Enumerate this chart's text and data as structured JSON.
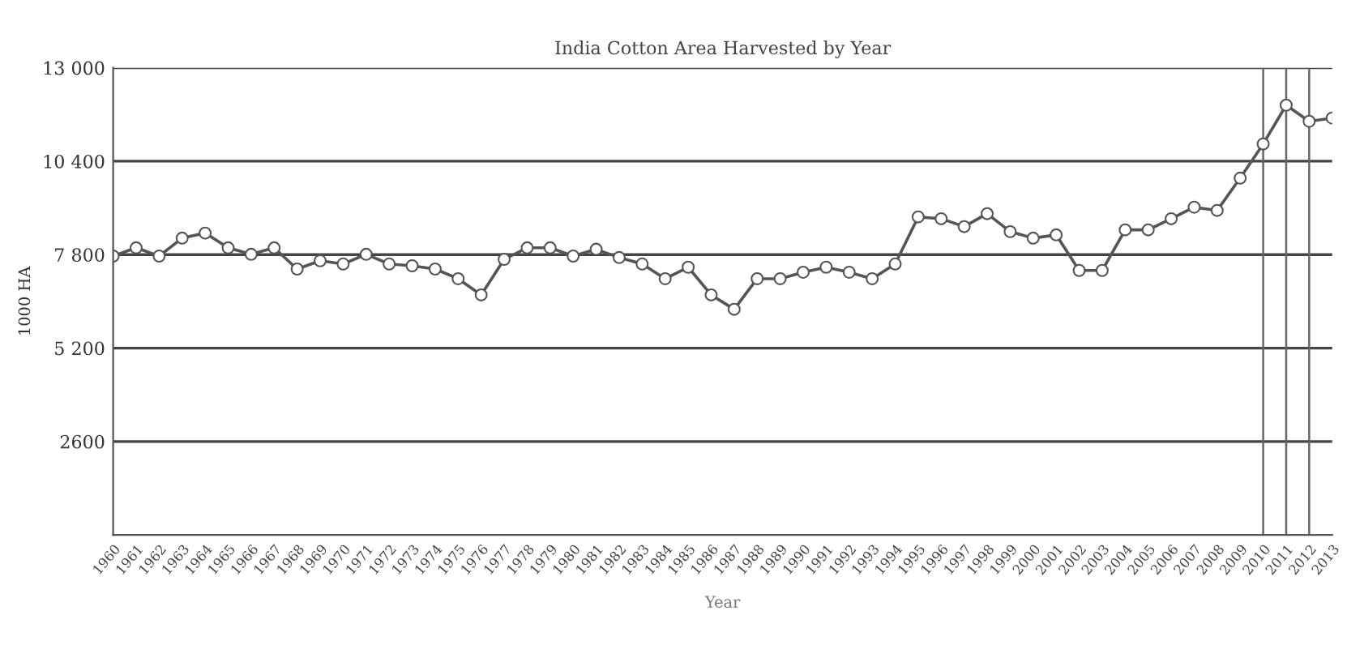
{
  "chart_data": {
    "type": "line",
    "title": "India Cotton Area Harvested by Year",
    "xlabel": "Year",
    "ylabel": "1000 HA",
    "x": [
      1960,
      1961,
      1962,
      1963,
      1964,
      1965,
      1966,
      1967,
      1968,
      1969,
      1970,
      1971,
      1972,
      1973,
      1974,
      1975,
      1976,
      1977,
      1978,
      1979,
      1980,
      1981,
      1982,
      1983,
      1984,
      1985,
      1986,
      1987,
      1988,
      1989,
      1990,
      1991,
      1992,
      1993,
      1994,
      1995,
      1996,
      1997,
      1998,
      1999,
      2000,
      2001,
      2002,
      2003,
      2004,
      2005,
      2006,
      2007,
      2008,
      2009,
      2010,
      2011,
      2012,
      2013
    ],
    "series": [
      {
        "color": "#555555",
        "values": [
          7760,
          7990,
          7760,
          8260,
          8400,
          7990,
          7810,
          7990,
          7400,
          7630,
          7540,
          7810,
          7540,
          7490,
          7400,
          7130,
          6680,
          7670,
          7990,
          7990,
          7760,
          7950,
          7720,
          7540,
          7130,
          7450,
          6680,
          6280,
          7130,
          7130,
          7310,
          7450,
          7310,
          7130,
          7540,
          8850,
          8800,
          8580,
          8940,
          8440,
          8260,
          8350,
          7360,
          7360,
          8490,
          8490,
          8800,
          9120,
          9030,
          9930,
          10880,
          11960,
          11510,
          11600
        ]
      }
    ],
    "xlim": [
      1960,
      2013
    ],
    "xticks": [
      1960,
      1961,
      1962,
      1963,
      1964,
      1965,
      1966,
      1967,
      1968,
      1969,
      1970,
      1971,
      1972,
      1973,
      1974,
      1975,
      1976,
      1977,
      1978,
      1979,
      1980,
      1981,
      1982,
      1983,
      1984,
      1985,
      1986,
      1987,
      1988,
      1989,
      1990,
      1991,
      1992,
      1993,
      1994,
      1995,
      1996,
      1997,
      1998,
      1999,
      2000,
      2001,
      2002,
      2003,
      2004,
      2005,
      2006,
      2007,
      2008,
      2009,
      2010,
      2011,
      2012,
      2013
    ],
    "ylim": [
      0,
      13000
    ],
    "yticks": [
      2600,
      {
        "value": 5200,
        "label": "5 200"
      },
      {
        "value": 7800,
        "label": "7 800"
      },
      {
        "value": 10400,
        "label": "10 400"
      },
      {
        "value": 13000,
        "label": "13 000"
      }
    ],
    "grid": "y",
    "marker": "circle",
    "line_style": "solid",
    "legend": false,
    "ref_lines": [
      {
        "axis": "x",
        "value": 2010,
        "color": "#666666"
      },
      {
        "axis": "x",
        "value": 2011,
        "color": "#666666"
      },
      {
        "axis": "x",
        "value": 2012,
        "color": "#666666"
      }
    ]
  }
}
